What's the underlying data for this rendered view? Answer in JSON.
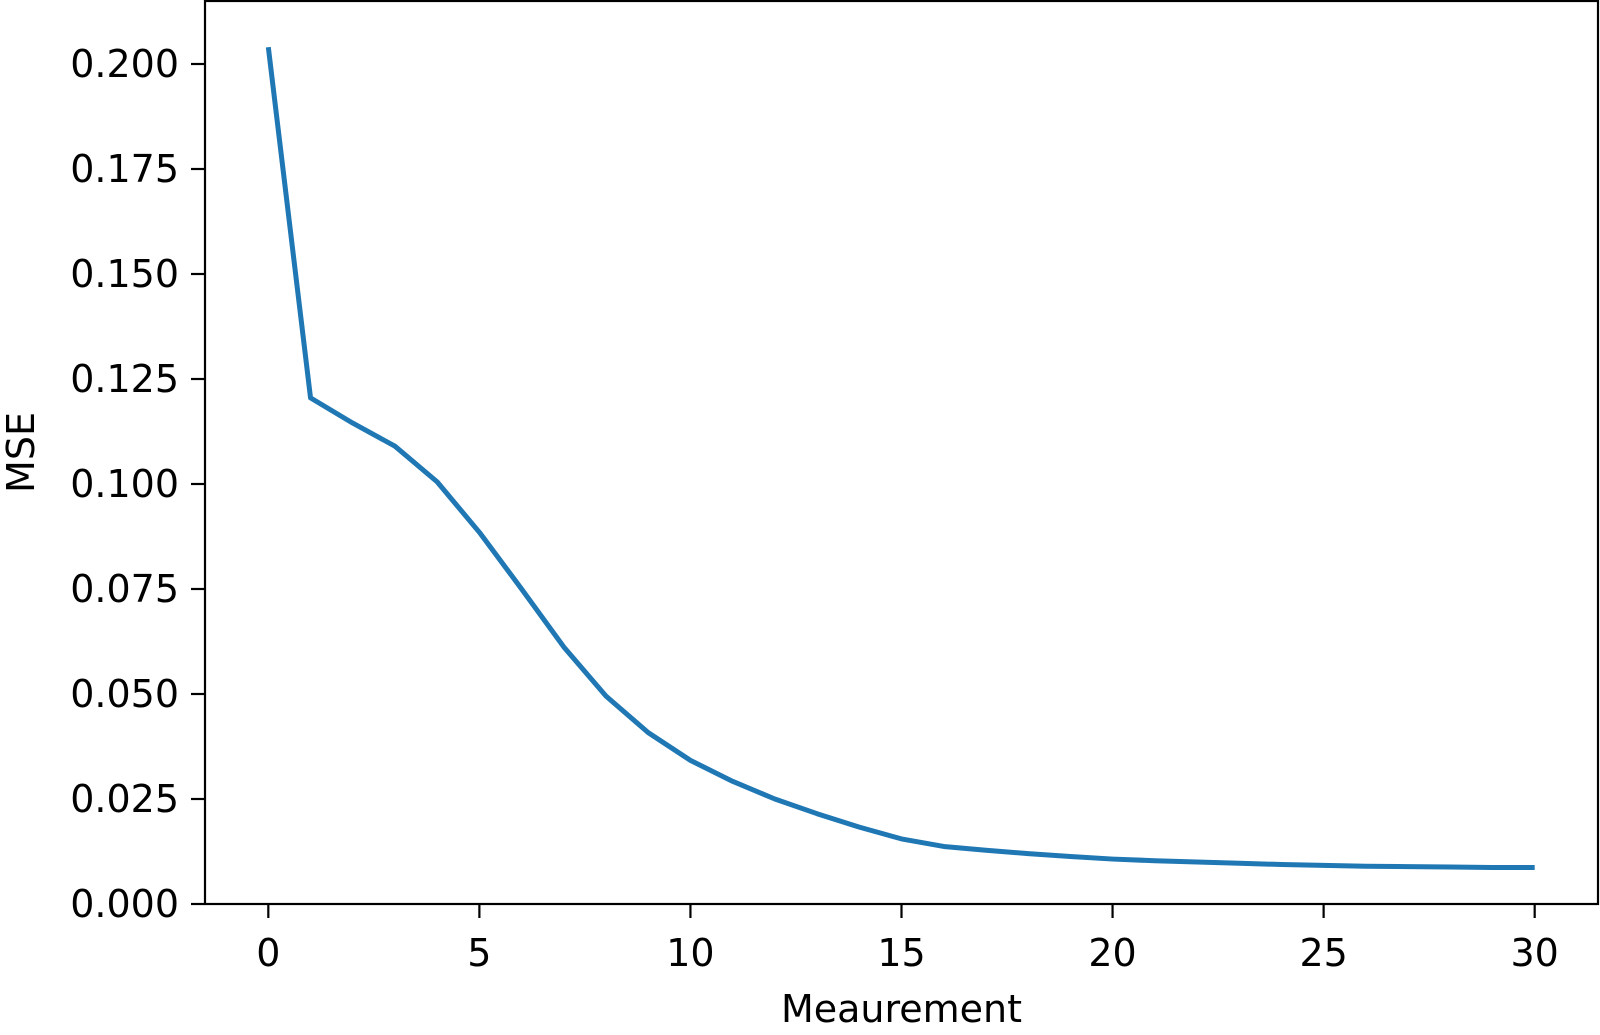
{
  "chart_data": {
    "type": "line",
    "title": "",
    "xlabel": "Meaurement",
    "ylabel": "MSE",
    "xlim": [
      -1.5,
      31.5
    ],
    "ylim": [
      0.0,
      0.215
    ],
    "xticks": [
      0,
      5,
      10,
      15,
      20,
      25,
      30
    ],
    "xtick_labels": [
      "0",
      "5",
      "10",
      "15",
      "20",
      "25",
      "30"
    ],
    "yticks": [
      0.0,
      0.025,
      0.05,
      0.075,
      0.1,
      0.125,
      0.15,
      0.175,
      0.2
    ],
    "ytick_labels": [
      "0.000",
      "0.025",
      "0.050",
      "0.075",
      "0.100",
      "0.125",
      "0.150",
      "0.175",
      "0.200"
    ],
    "grid": false,
    "legend": "none",
    "series": [
      {
        "color": "#1f77b4",
        "x": [
          0,
          1,
          2,
          3,
          4,
          5,
          6,
          7,
          8,
          9,
          10,
          11,
          12,
          13,
          14,
          15,
          16,
          17,
          18,
          19,
          20,
          21,
          22,
          23,
          24,
          25,
          26,
          27,
          28,
          29,
          30
        ],
        "values": [
          0.204,
          0.1205,
          0.1145,
          0.109,
          0.1005,
          0.0885,
          0.075,
          0.0612,
          0.0495,
          0.0408,
          0.0342,
          0.0292,
          0.025,
          0.0215,
          0.0183,
          0.0155,
          0.0137,
          0.0128,
          0.012,
          0.0113,
          0.0107,
          0.0103,
          0.01,
          0.0097,
          0.0094,
          0.0092,
          0.009,
          0.0089,
          0.0088,
          0.0087,
          0.0087
        ]
      }
    ]
  }
}
